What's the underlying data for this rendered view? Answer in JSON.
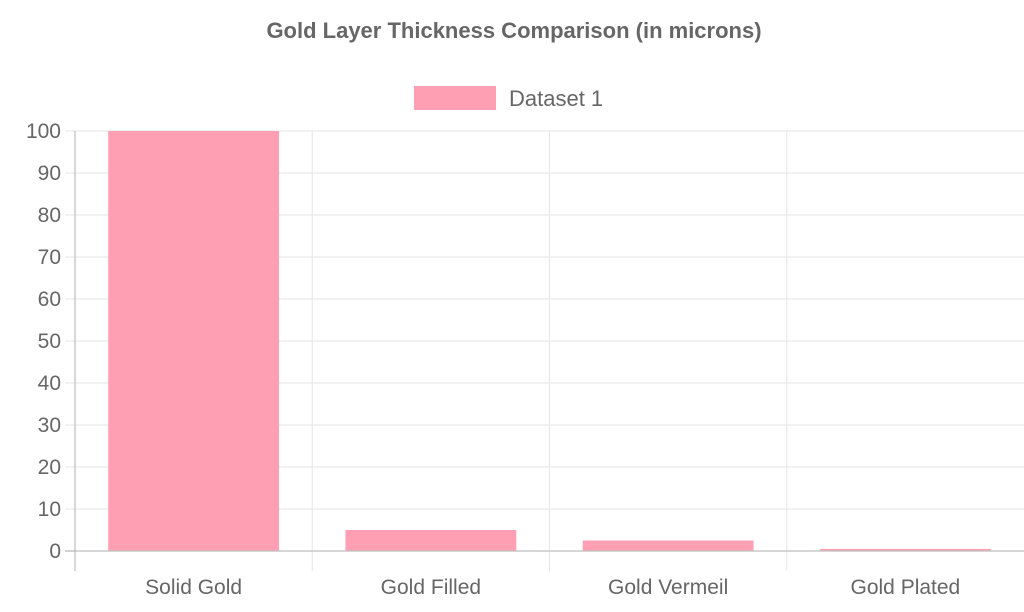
{
  "chart_data": {
    "type": "bar",
    "title": "Gold Layer Thickness Comparison (in microns)",
    "categories": [
      "Solid Gold",
      "Gold Filled",
      "Gold Vermeil",
      "Gold Plated"
    ],
    "series": [
      {
        "name": "Dataset 1",
        "values": [
          100,
          5,
          2.5,
          0.5
        ],
        "color": "#ff9fb3"
      }
    ],
    "ylim": [
      0,
      100
    ],
    "yticks": [
      0,
      10,
      20,
      30,
      40,
      50,
      60,
      70,
      80,
      90,
      100
    ],
    "xlabel": "",
    "ylabel": "",
    "grid": true,
    "legend_position": "top-center"
  }
}
